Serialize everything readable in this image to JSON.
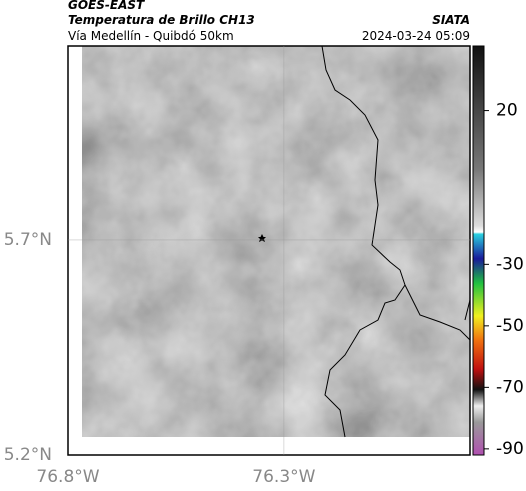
{
  "header": {
    "satellite": "GOES-EAST",
    "product": "Temperatura de Brillo CH13",
    "source": "SIATA",
    "route": "Vía Medellín - Quibdó 50km",
    "datetime": "2024-03-24 05:09"
  },
  "map": {
    "xlim": [
      -76.8,
      -75.869
    ],
    "ylim": [
      5.2,
      6.151
    ],
    "xticks": [
      {
        "value": -76.8,
        "label": "76.8°W"
      },
      {
        "value": -76.3,
        "label": "76.3°W"
      }
    ],
    "yticks": [
      {
        "value": 5.2,
        "label": "5.2°N"
      },
      {
        "value": 5.7,
        "label": "5.7°N"
      }
    ],
    "grid": true
  },
  "colorbar": {
    "lim": [
      41,
      -92
    ],
    "ticks": [
      20,
      -30,
      -50,
      -70,
      -90
    ]
  }
}
